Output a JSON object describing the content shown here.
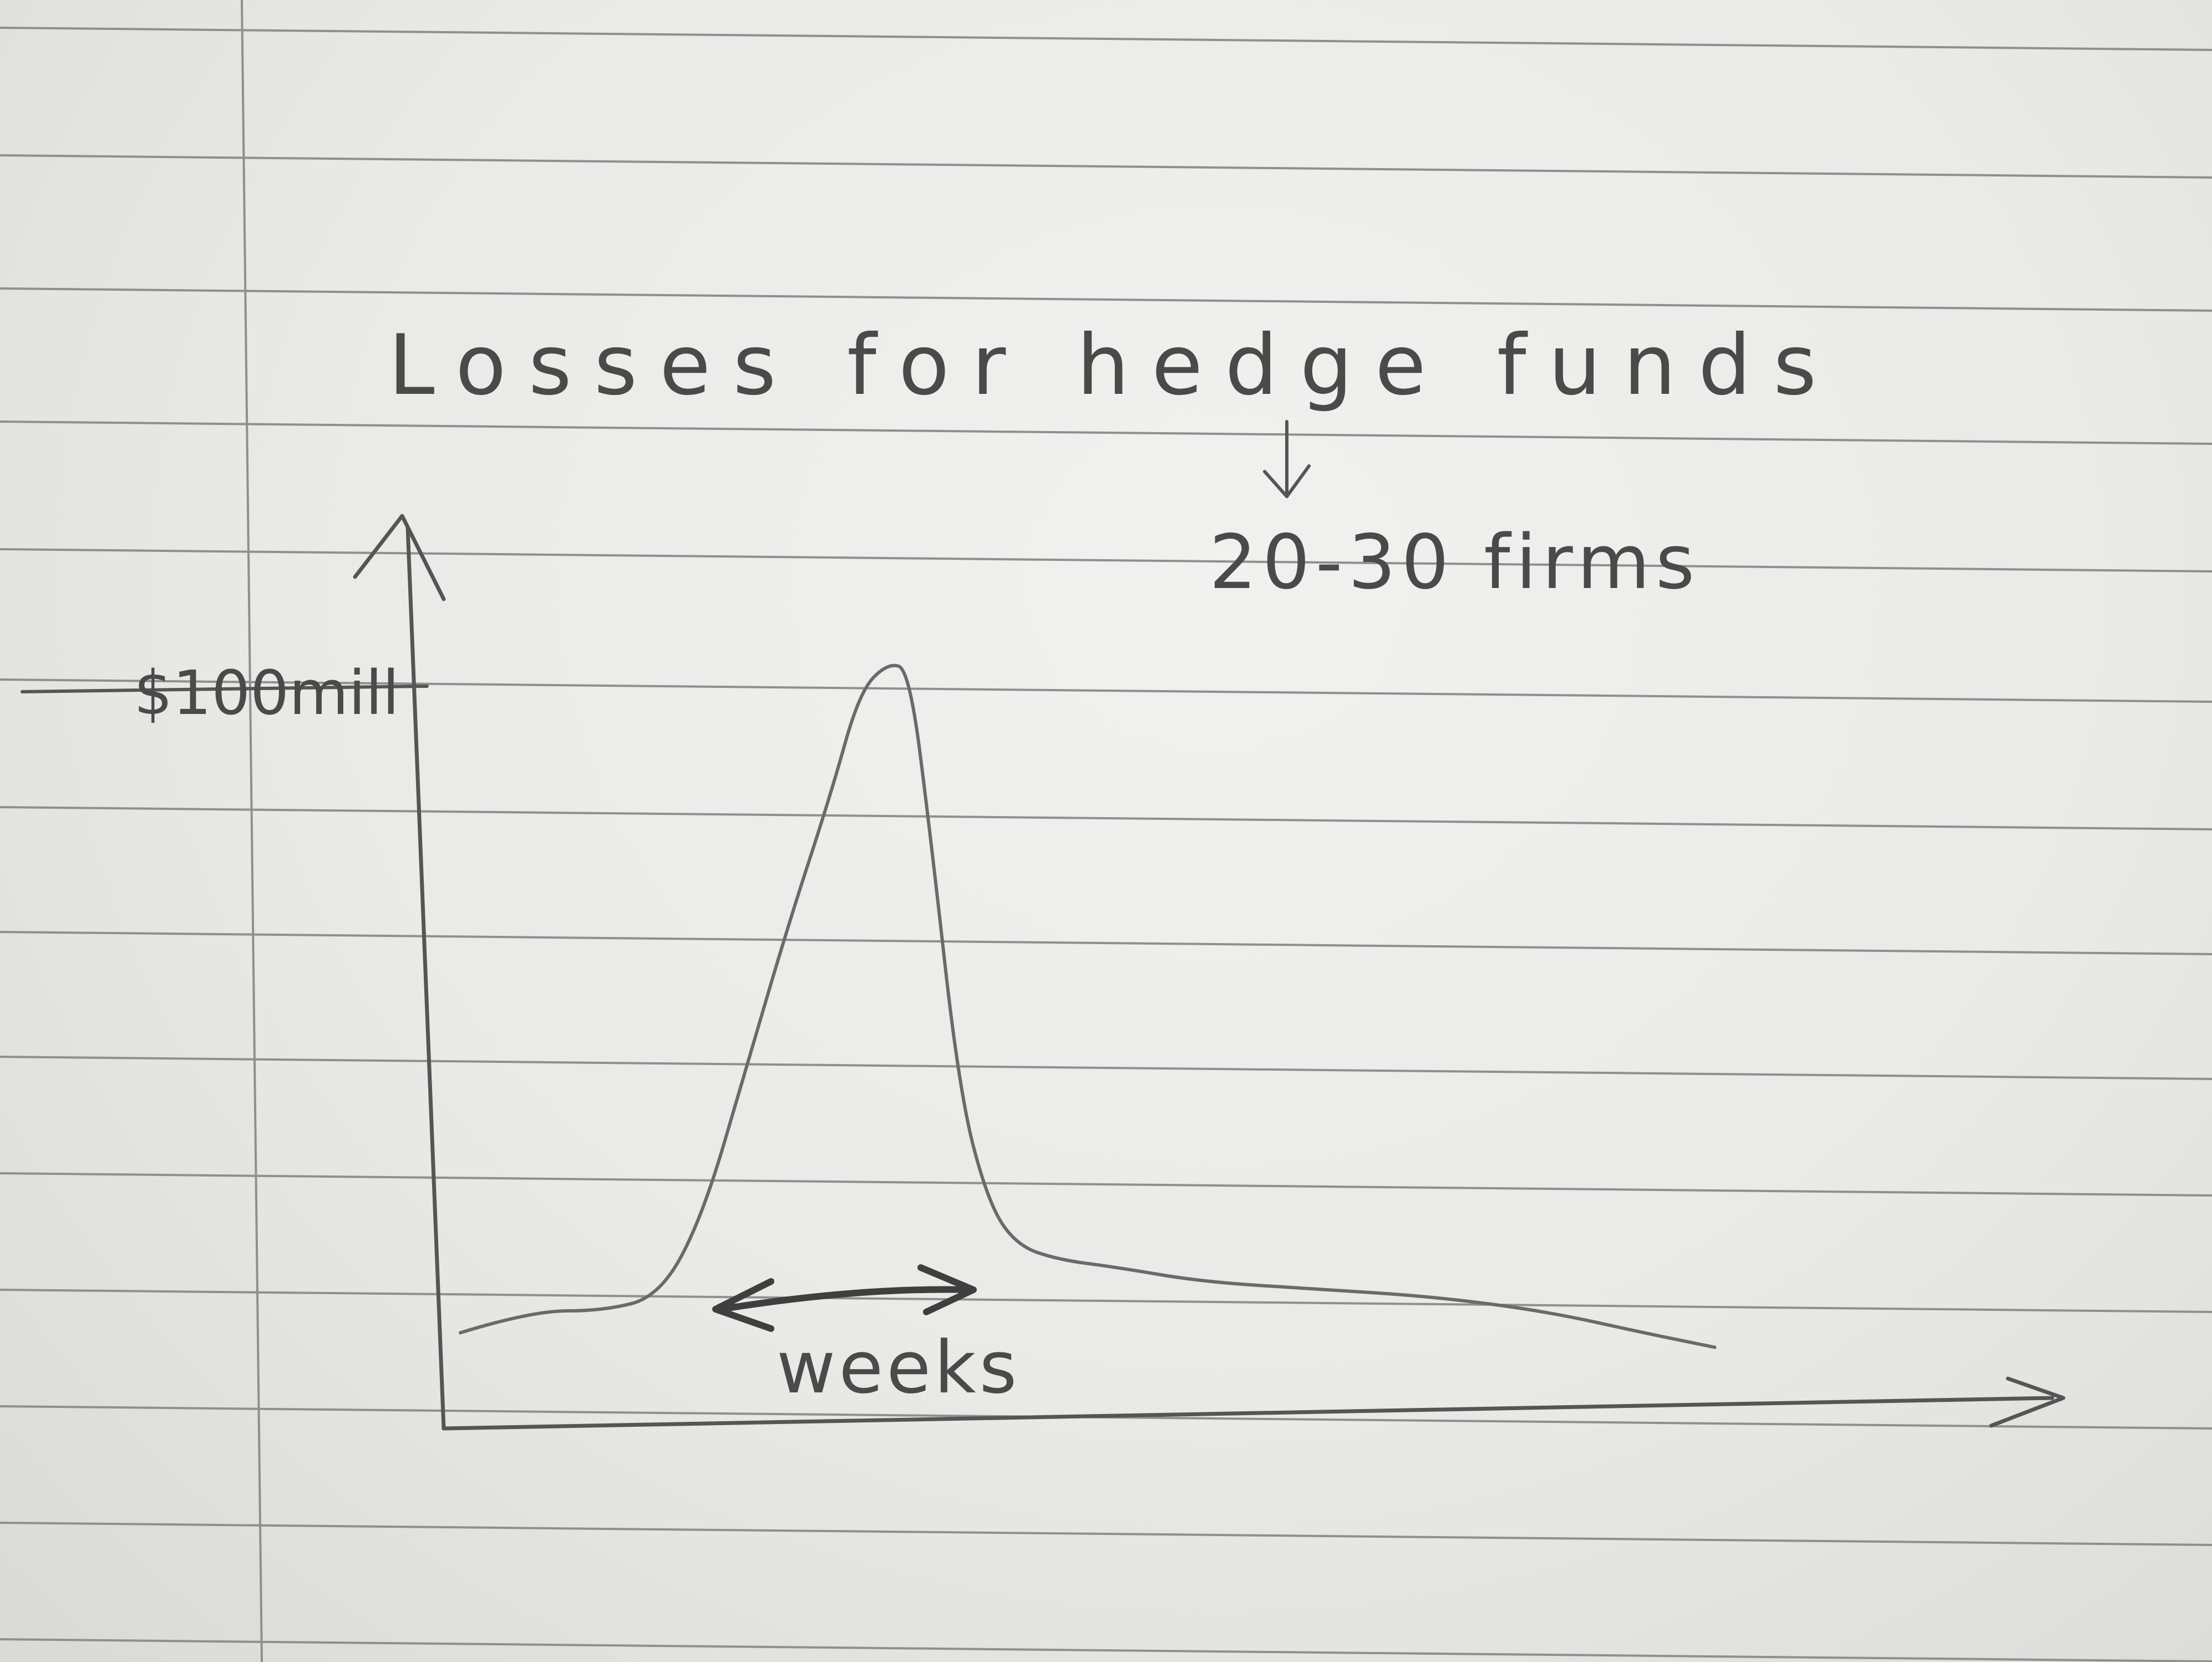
{
  "chart_data": {
    "type": "line",
    "title": "Losses for hedge funds",
    "annotation": "20-30 firms",
    "xlabel": "weeks",
    "ylabel": "",
    "y_tick_labels": [
      "$100mill"
    ],
    "y_tick_values": [
      100
    ],
    "ylim": [
      0,
      115
    ],
    "xlim": [
      0,
      100
    ],
    "grid": false,
    "series": [
      {
        "x": [
          0,
          5,
          10,
          14,
          17,
          20,
          23,
          26,
          28,
          30,
          31.5,
          33,
          35,
          37,
          39,
          42,
          46,
          52,
          60,
          68,
          76,
          83,
          88
        ],
        "y": [
          12,
          15,
          15,
          17,
          28,
          48,
          68,
          86,
          100,
          104,
          103,
          80,
          45,
          30,
          24,
          22,
          21,
          19,
          18,
          17,
          15,
          12,
          10
        ]
      }
    ]
  }
}
